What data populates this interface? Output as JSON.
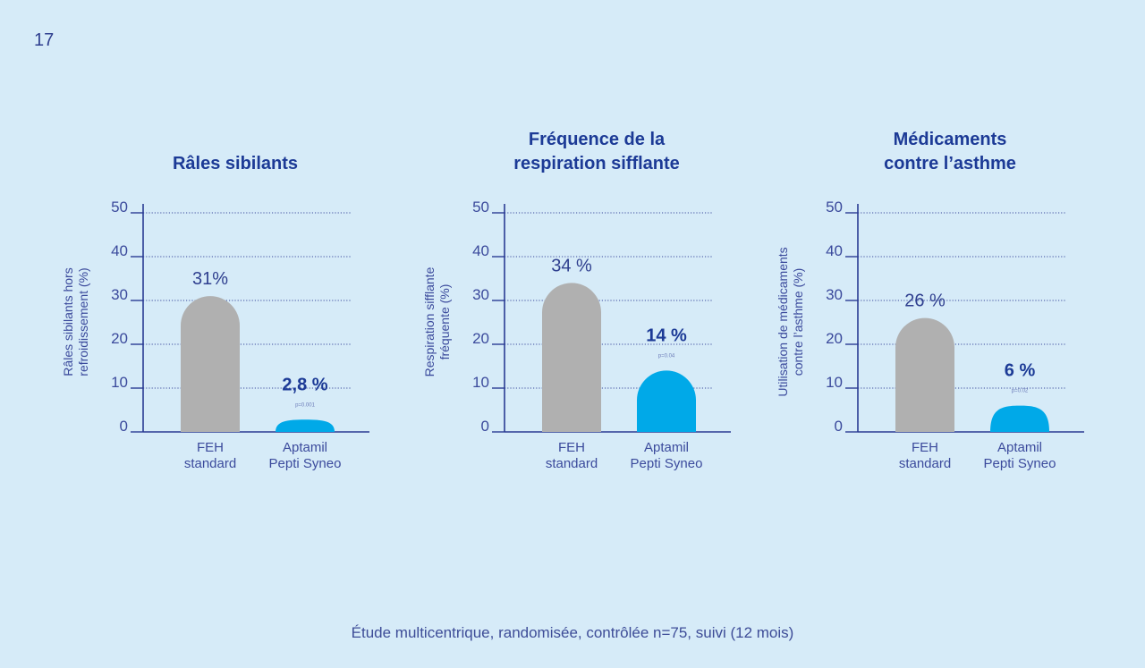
{
  "page": {
    "number": "17"
  },
  "footnote": "Étude multicentrique, randomisée, contrôlée n=75, suivi (12 mois)",
  "colors": {
    "accent": "#1c3a96",
    "bar_standard": "#b0b0b0",
    "bar_aptamil": "#00a9e8",
    "axis": "#2a3b93",
    "background": "#d6ebf8"
  },
  "chart_data": [
    {
      "type": "bar",
      "title": [
        "Râles sibilants"
      ],
      "ylabel": [
        "Râles sibilants hors",
        "refroidissement (%)"
      ],
      "yticks": [
        "0",
        "10",
        "20",
        "30",
        "40",
        "50"
      ],
      "ylim": [
        0,
        50
      ],
      "grid": true,
      "categories": [
        [
          "FEH",
          "standard"
        ],
        [
          "Aptamil",
          "Pepti Syneo"
        ]
      ],
      "values": [
        31,
        2.8
      ],
      "value_labels": [
        "31%",
        "2,8 %"
      ],
      "pvalue": "p=0.001"
    },
    {
      "type": "bar",
      "title": [
        "Fréquence de la",
        "respiration sifflante"
      ],
      "ylabel": [
        "Respiration sifflante",
        "fréquente (%)"
      ],
      "yticks": [
        "0",
        "10",
        "20",
        "30",
        "40",
        "50"
      ],
      "ylim": [
        0,
        50
      ],
      "grid": true,
      "categories": [
        [
          "FEH",
          "standard"
        ],
        [
          "Aptamil",
          "Pepti Syneo"
        ]
      ],
      "values": [
        34,
        14
      ],
      "value_labels": [
        "34 %",
        "14 %"
      ],
      "pvalue": "p=0.04"
    },
    {
      "type": "bar",
      "title": [
        "Médicaments",
        "contre l’asthme"
      ],
      "ylabel": [
        "Utilisation de médicaments",
        "contre l’asthme (%)"
      ],
      "yticks": [
        "0",
        "10",
        "20",
        "30",
        "40",
        "50"
      ],
      "ylim": [
        0,
        50
      ],
      "grid": true,
      "categories": [
        [
          "FEH",
          "standard"
        ],
        [
          "Aptamil",
          "Pepti Syneo"
        ]
      ],
      "values": [
        26,
        6
      ],
      "value_labels": [
        "26 %",
        "6 %"
      ],
      "pvalue": "p=0.02"
    }
  ]
}
